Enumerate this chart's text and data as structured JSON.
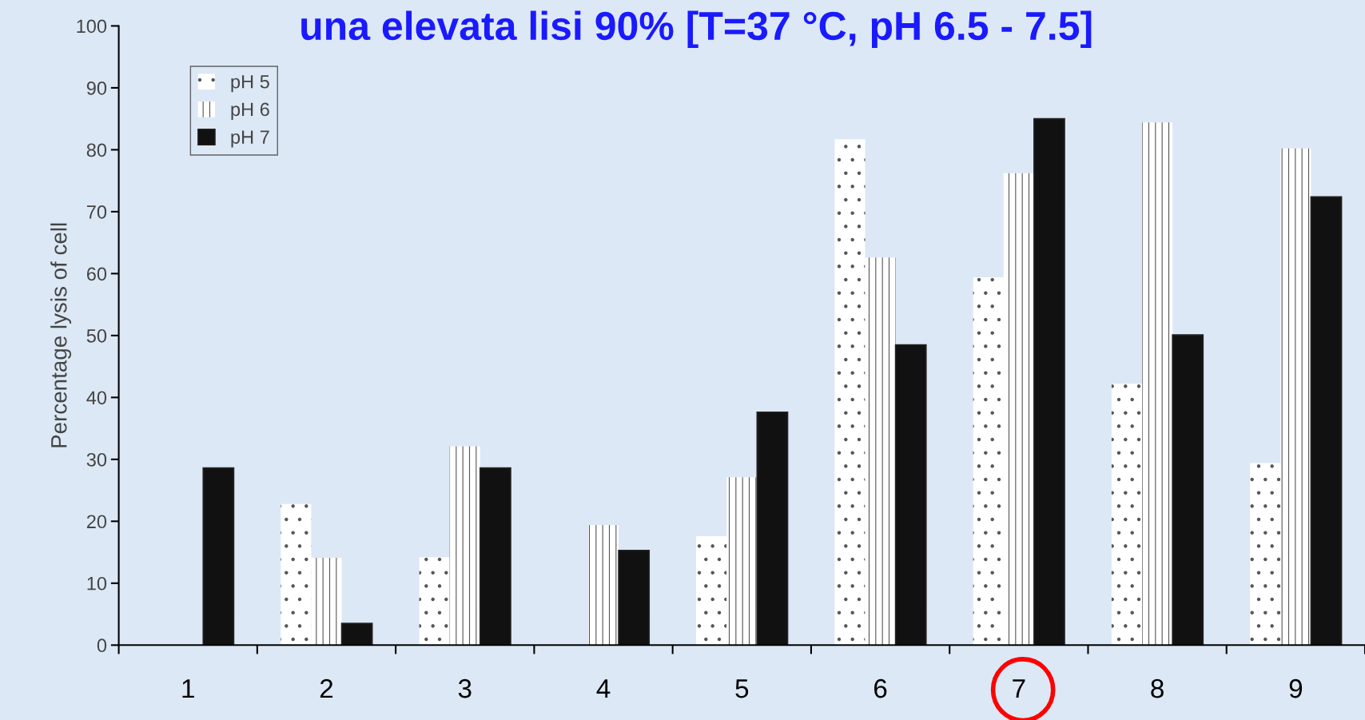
{
  "chart_data": {
    "type": "bar",
    "title": "una elevata lisi 90% [T=37 °C, pH 6.5 - 7.5]",
    "ylabel": "Percentage lysis of cell",
    "categories": [
      "1",
      "2",
      "3",
      "4",
      "5",
      "6",
      "7",
      "8",
      "9"
    ],
    "series": [
      {
        "name": "pH 5",
        "color": "#ffffff",
        "values": [
          null,
          22.8,
          14.2,
          null,
          17.6,
          81.7,
          59.4,
          42.2,
          29.4
        ]
      },
      {
        "name": "pH 6",
        "color": "#ffffff",
        "values": [
          null,
          14.1,
          32.1,
          19.4,
          27.1,
          62.6,
          76.2,
          84.4,
          80.2
        ]
      },
      {
        "name": "pH 7",
        "color": "#111111",
        "values": [
          28.6,
          3.5,
          28.6,
          15.3,
          37.6,
          48.5,
          85,
          50.1,
          72.4
        ]
      }
    ],
    "ylim": [
      0,
      100
    ],
    "yticks": [
      0,
      10,
      20,
      30,
      40,
      50,
      60,
      70,
      80,
      90,
      100
    ],
    "grid": false,
    "legend": "top left"
  }
}
